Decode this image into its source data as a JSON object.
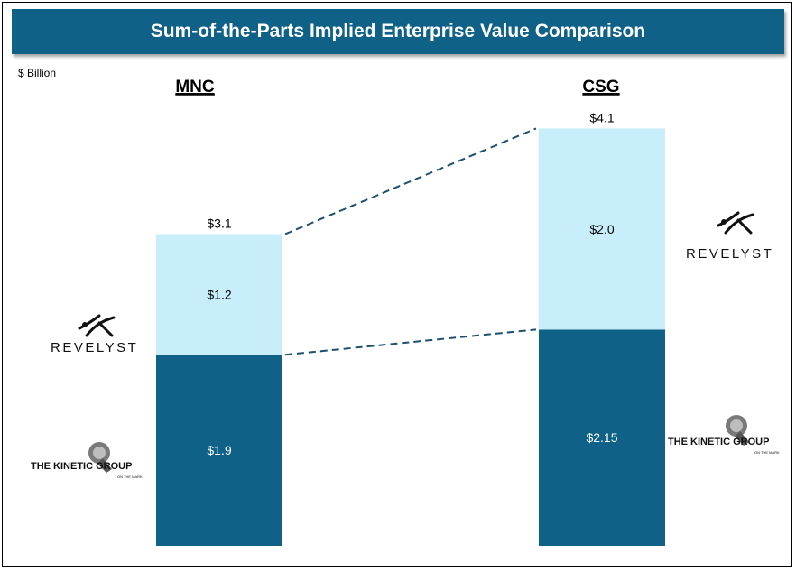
{
  "title": "Sum-of-the-Parts Implied Enterprise Value Comparison",
  "unit_label": "$ Billion",
  "colors": {
    "title_bg": "#0f6188",
    "dark_segment": "#0f6188",
    "light_segment": "#c8eefc",
    "connector": "#1d4f6e"
  },
  "logos": {
    "revelyst": "REVELYST",
    "kinetic": "THE KINETIC GROUP",
    "kinetic_tagline": "ON THE MARK"
  },
  "chart_data": {
    "type": "bar",
    "stacked": true,
    "categories": [
      "MNC",
      "CSG"
    ],
    "series": [
      {
        "values": [
          1.9,
          2.15
        ],
        "labels": [
          "$1.9",
          "$2.15"
        ],
        "color": "#0f6188"
      },
      {
        "values": [
          1.2,
          2.0
        ],
        "labels": [
          "$1.2",
          "$2.0"
        ],
        "color": "#c8eefc"
      }
    ],
    "totals": [
      3.1,
      4.1
    ],
    "total_labels": [
      "$3.1",
      "$4.1"
    ],
    "ylabel": "$ Billion",
    "grid": false,
    "connectors": "dashed lines linking segment tops between bars"
  }
}
